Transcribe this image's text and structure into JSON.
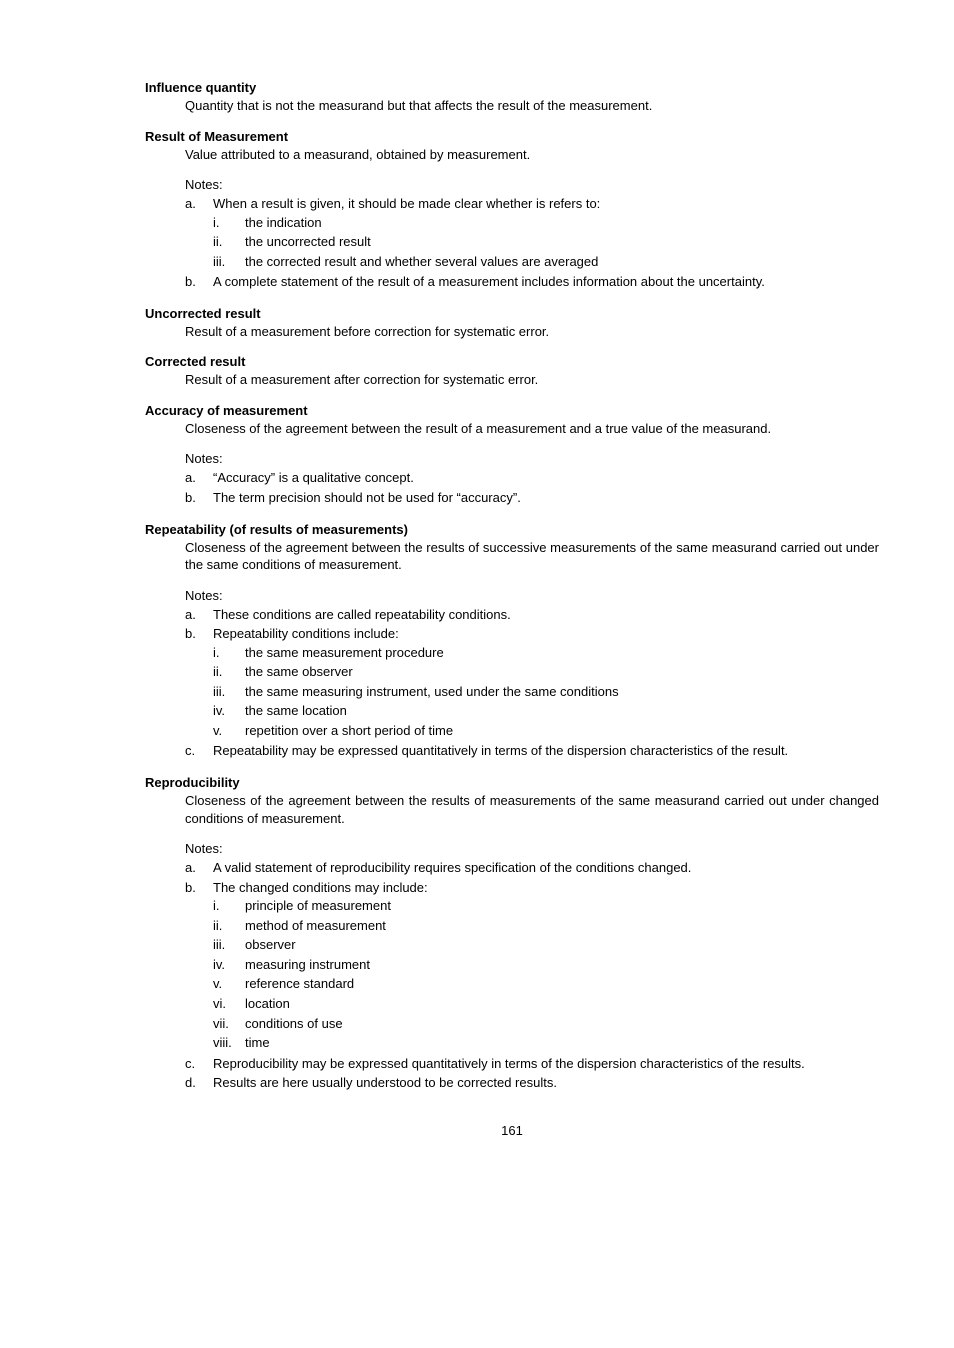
{
  "pageNumber": "161",
  "sections": [
    {
      "title": "Influence quantity",
      "body": "Quantity that is not the measurand but that affects the result of the measurement."
    },
    {
      "title": "Result of Measurement",
      "body": "Value attributed to a measurand, obtained by measurement.",
      "notesHeading": "Notes:",
      "notes": [
        {
          "marker": "a.",
          "text": "When a result is given, it should be made clear whether is refers to:",
          "sub": [
            {
              "marker": "i.",
              "text": "the indication"
            },
            {
              "marker": "ii.",
              "text": "the uncorrected result"
            },
            {
              "marker": "iii.",
              "text": "the corrected result and whether several values are averaged"
            }
          ]
        },
        {
          "marker": "b.",
          "text": "A complete statement of the result of a measurement includes information about the uncertainty."
        }
      ]
    },
    {
      "title": "Uncorrected result",
      "body": "Result of a measurement before correction for systematic error."
    },
    {
      "title": "Corrected result",
      "body": "Result of a measurement after correction for systematic error."
    },
    {
      "title": "Accuracy of measurement",
      "body": "Closeness of the agreement between the result of a measurement and a true value of the measurand.",
      "notesHeading": "Notes:",
      "notes": [
        {
          "marker": "a.",
          "text": "“Accuracy” is a qualitative concept."
        },
        {
          "marker": "b.",
          "text": "The term precision should not be used for “accuracy”."
        }
      ]
    },
    {
      "title": "Repeatability (of results of measurements)",
      "body": "Closeness of the agreement between the results of successive measurements of the same measurand carried out under the same conditions of measurement.",
      "notesHeading": "Notes:",
      "notes": [
        {
          "marker": "a.",
          "text": "These conditions are called repeatability conditions."
        },
        {
          "marker": "b.",
          "text": "Repeatability conditions include:",
          "sub": [
            {
              "marker": "i.",
              "text": "the same measurement procedure"
            },
            {
              "marker": "ii.",
              "text": "the same observer"
            },
            {
              "marker": "iii.",
              "text": "the same measuring instrument, used under the same conditions"
            },
            {
              "marker": "iv.",
              "text": "the same location"
            },
            {
              "marker": "v.",
              "text": "repetition over a short period of time"
            }
          ]
        },
        {
          "marker": "c.",
          "text": "Repeatability may be expressed quantitatively in terms of the dispersion characteristics of the result."
        }
      ]
    },
    {
      "title": "Reproducibility",
      "body": "Closeness of the agreement between the results of measurements of the same measurand carried out under changed conditions of measurement.",
      "notesHeading": "Notes:",
      "notes": [
        {
          "marker": "a.",
          "text": "A valid statement of reproducibility requires specification of the conditions changed."
        },
        {
          "marker": "b.",
          "text": "The changed conditions may include:",
          "sub": [
            {
              "marker": "i.",
              "text": "principle of measurement"
            },
            {
              "marker": "ii.",
              "text": "method of measurement"
            },
            {
              "marker": "iii.",
              "text": "observer"
            },
            {
              "marker": "iv.",
              "text": "measuring instrument"
            },
            {
              "marker": "v.",
              "text": "reference standard"
            },
            {
              "marker": "vi.",
              "text": "location"
            },
            {
              "marker": "vii.",
              "text": "conditions of use"
            },
            {
              "marker": "viii.",
              "text": "time"
            }
          ]
        },
        {
          "marker": "c.",
          "text": "Reproducibility may be expressed quantitatively in terms of the dispersion characteristics of the results."
        },
        {
          "marker": "d.",
          "text": "Results are here usually understood to be corrected results."
        }
      ]
    }
  ]
}
